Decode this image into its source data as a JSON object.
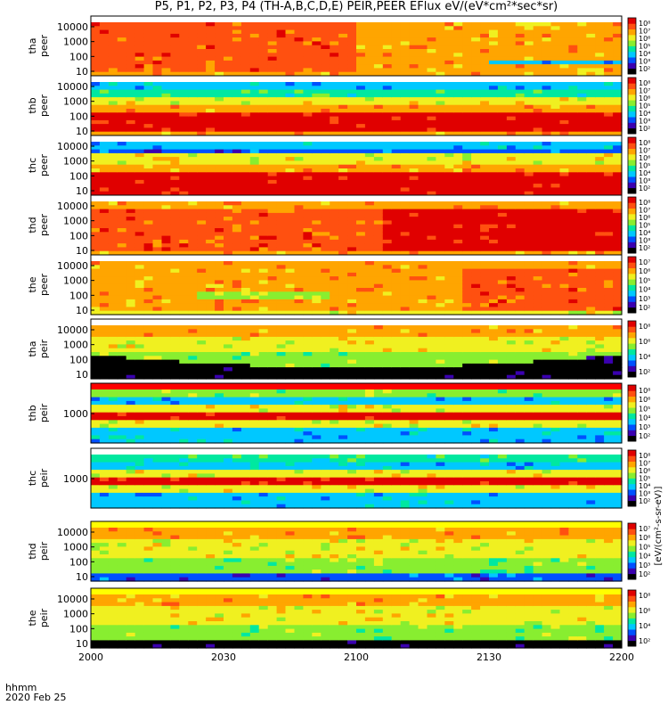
{
  "title": "P5, P1, P2, P3, P4 (TH-A,B,C,D,E) PEIR,PEER EFlux eV/(eV*cm²*sec*sr)",
  "time_axis": {
    "row_label": "hhmm",
    "date_label": "2020 Feb 25",
    "ticks": [
      "2000",
      "2030",
      "2100",
      "2130",
      "2200"
    ]
  },
  "colorbar_label": "[eV/(cm²-s-sr-eV)]",
  "colors": {
    "spectrogram": [
      "#000000",
      "#3a00b0",
      "#0050ff",
      "#00c8ff",
      "#00e8a0",
      "#88ee30",
      "#f0f020",
      "#ffa500",
      "#ff5010",
      "#e00000"
    ],
    "band_white": "#ffffff",
    "band_red": "#ff0000",
    "band_yellow": "#ffff00"
  },
  "chart_data": [
    {
      "type": "heatmap",
      "ylabel": [
        "tha",
        "peer"
      ],
      "yticks": [
        "10000",
        "1000",
        "100",
        "10"
      ],
      "scale": "log",
      "colorbar_ticks": [
        "10⁸",
        "10⁷",
        "10⁶",
        "10⁵",
        "10⁴",
        "10³",
        "10²"
      ],
      "band_color": "white"
    },
    {
      "type": "heatmap",
      "ylabel": [
        "thb",
        "peer"
      ],
      "yticks": [
        "10000",
        "1000",
        "100",
        "10"
      ],
      "scale": "log",
      "colorbar_ticks": [
        "10⁸",
        "10⁷",
        "10⁶",
        "10⁵",
        "10⁴",
        "10³",
        "10²"
      ],
      "band_color": "white"
    },
    {
      "type": "heatmap",
      "ylabel": [
        "thc",
        "peer"
      ],
      "yticks": [
        "10000",
        "1000",
        "100",
        "10"
      ],
      "scale": "log",
      "colorbar_ticks": [
        "10⁸",
        "10⁷",
        "10⁶",
        "10⁵",
        "10⁴",
        "10³",
        "10²"
      ],
      "band_color": "white"
    },
    {
      "type": "heatmap",
      "ylabel": [
        "thd",
        "peer"
      ],
      "yticks": [
        "10000",
        "1000",
        "100",
        "10"
      ],
      "scale": "log",
      "colorbar_ticks": [
        "10⁸",
        "10⁷",
        "10⁶",
        "10⁵",
        "10⁴",
        "10³",
        "10²"
      ],
      "band_color": "white"
    },
    {
      "type": "heatmap",
      "ylabel": [
        "the",
        "peer"
      ],
      "yticks": [
        "10000",
        "1000",
        "100",
        "10"
      ],
      "scale": "log",
      "colorbar_ticks": [
        "10⁷",
        "10⁶",
        "10⁵",
        "10⁴",
        "10³",
        "10²"
      ],
      "band_color": "white"
    },
    {
      "type": "heatmap",
      "ylabel": [
        "tha",
        "peir"
      ],
      "yticks": [
        "10000",
        "1000",
        "100",
        "10"
      ],
      "scale": "log",
      "colorbar_ticks": [
        "10⁸",
        "10⁶",
        "10⁴",
        "10²"
      ],
      "band_color": "white"
    },
    {
      "type": "heatmap",
      "ylabel": [
        "thb",
        "peir"
      ],
      "yticks": [
        "1000"
      ],
      "scale": "log",
      "colorbar_ticks": [
        "10⁸",
        "10⁶",
        "10⁵",
        "10⁴",
        "10³",
        "10²"
      ],
      "band_color": "red"
    },
    {
      "type": "heatmap",
      "ylabel": [
        "thc",
        "peir"
      ],
      "yticks": [
        "1000"
      ],
      "scale": "log",
      "colorbar_ticks": [
        "10⁸",
        "10⁷",
        "10⁶",
        "10⁵",
        "10⁴",
        "10³",
        "10²"
      ],
      "band_color": "white"
    },
    {
      "type": "heatmap",
      "ylabel": [
        "thd",
        "peir"
      ],
      "yticks": [
        "10000",
        "1000",
        "100",
        "10"
      ],
      "scale": "log",
      "colorbar_ticks": [
        "10⁷",
        "10⁶",
        "10⁵",
        "10⁴",
        "10³",
        "10²"
      ],
      "band_color": "yellow"
    },
    {
      "type": "heatmap",
      "ylabel": [
        "the",
        "peir"
      ],
      "yticks": [
        "10000",
        "1000",
        "100",
        "10"
      ],
      "scale": "log",
      "colorbar_ticks": [
        "10⁸",
        "10⁶",
        "10⁴",
        "10²"
      ],
      "band_color": "yellow"
    }
  ]
}
